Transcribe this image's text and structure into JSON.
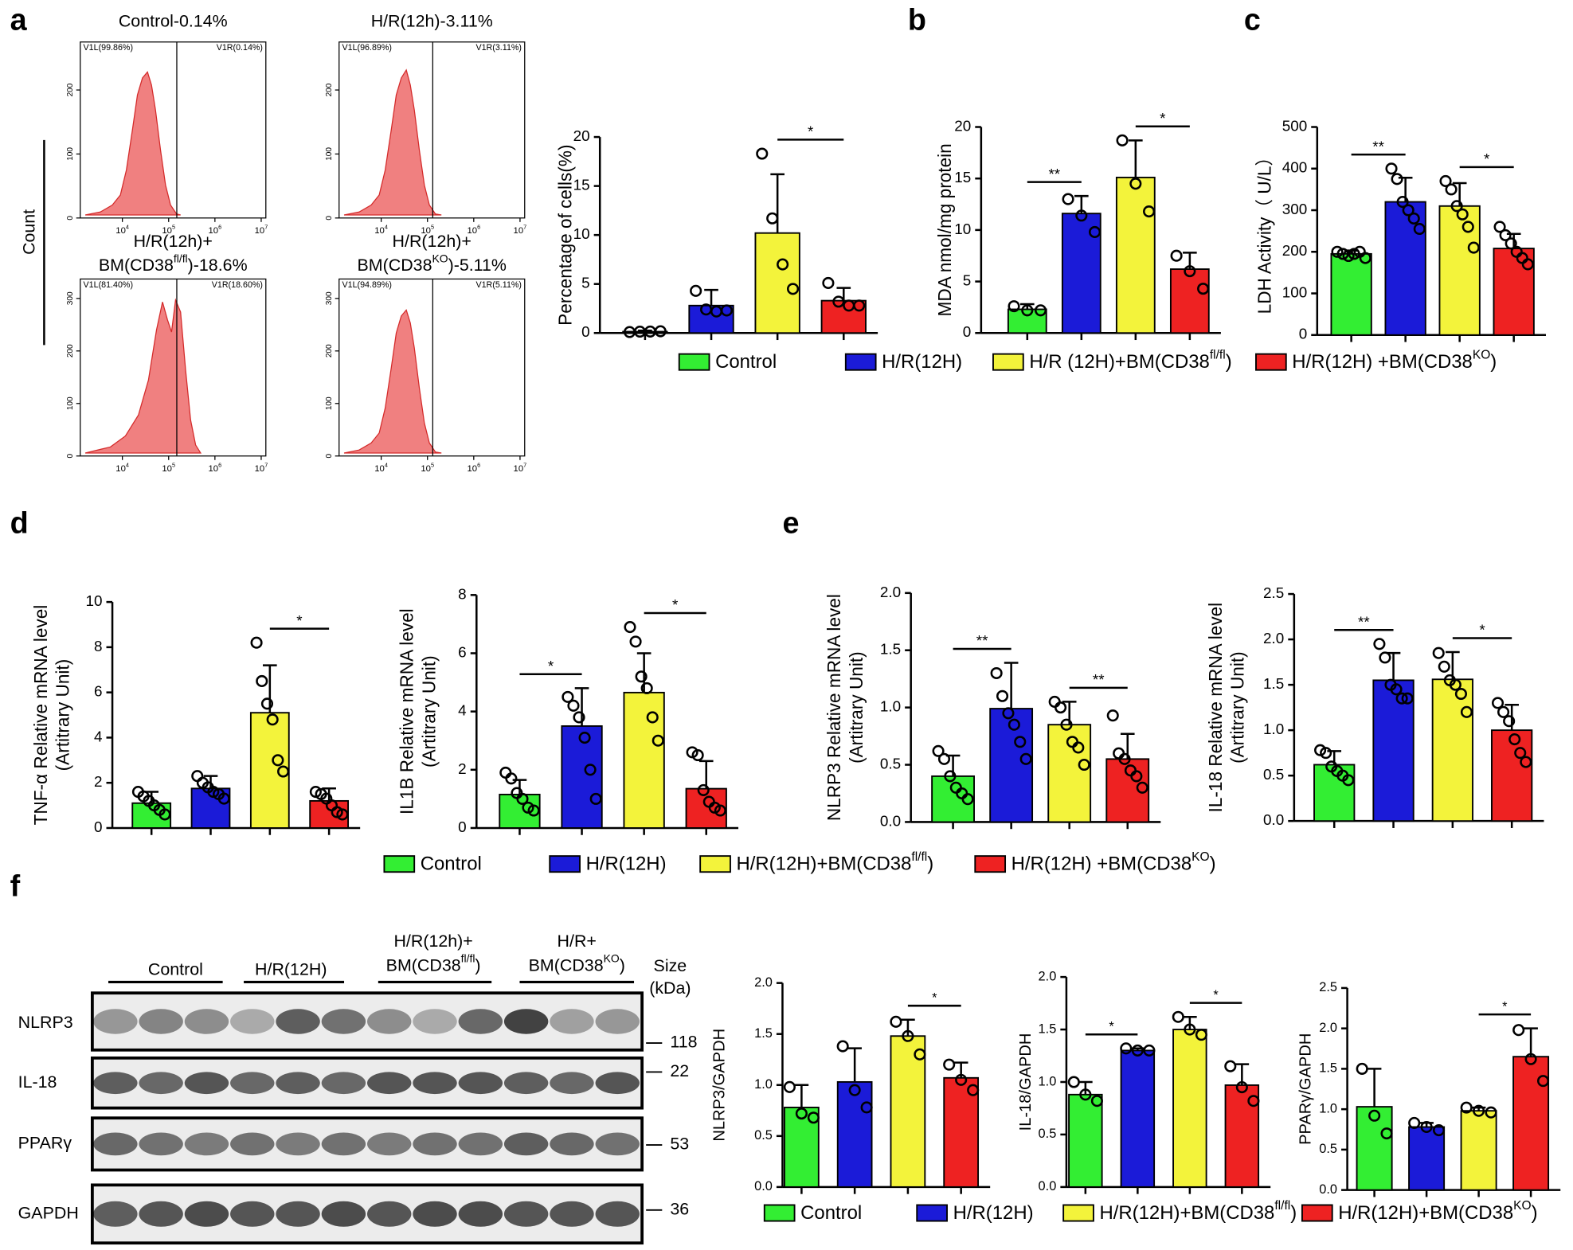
{
  "panel_labels": [
    "a",
    "b",
    "c",
    "d",
    "e",
    "f"
  ],
  "flow": {
    "ylabel": "Count",
    "xscale": "log",
    "xlim": [
      1230,
      12600000
    ],
    "xticks": [
      {
        "value": 10000,
        "label": [
          "10",
          {
            "sup": "4"
          }
        ]
      },
      {
        "value": 100000,
        "label": [
          "10",
          {
            "sup": "5"
          }
        ]
      },
      {
        "value": 1000000,
        "label": [
          "10",
          {
            "sup": "6"
          }
        ]
      },
      {
        "value": 10000000,
        "label": [
          "10",
          {
            "sup": "7"
          }
        ]
      }
    ],
    "panels": [
      {
        "title": [
          [
            "Control-0.14%"
          ]
        ],
        "gate_labels": [
          "V1L(99.86%)",
          "V1R(0.14%)"
        ],
        "gate": 150000,
        "ylim": [
          0,
          275
        ],
        "yticks": [
          0,
          100,
          200
        ]
      },
      {
        "title": [
          [
            "H/R(12h)-3.11%"
          ]
        ],
        "gate_labels": [
          "V1L(96.89%)",
          "V1R(3.11%)"
        ],
        "gate": 130000,
        "ylim": [
          0,
          275
        ],
        "yticks": [
          0,
          100,
          200
        ]
      },
      {
        "title": [
          [
            "H/R(12h)+"
          ],
          [
            "BM(CD38",
            {
              "sup": "fl/fl"
            },
            ")-18.6%"
          ]
        ],
        "gate_labels": [
          "V1L(81.40%)",
          "V1R(18.60%)"
        ],
        "gate": 150000,
        "ylim": [
          0,
          337
        ],
        "yticks": [
          0,
          100,
          200,
          300
        ]
      },
      {
        "title": [
          [
            "H/R(12h)+"
          ],
          [
            "BM(CD38",
            {
              "sup": "KO"
            },
            ")-5.11%"
          ]
        ],
        "gate_labels": [
          "V1L(94.89%)",
          "V1R(5.11%)"
        ],
        "gate": 130000,
        "ylim": [
          0,
          337
        ],
        "yticks": [
          0,
          100,
          200,
          300
        ]
      }
    ]
  },
  "chart_data": [
    {
      "type": "bar",
      "ylabel": [
        "Percentage of cells(%)"
      ],
      "ylim": [
        0,
        20
      ],
      "yticks": [
        0,
        5,
        10,
        15,
        20
      ],
      "values": [
        0.14,
        2.8,
        10.2,
        3.3
      ],
      "errors": [
        0.1,
        1.6,
        6.0,
        1.3
      ],
      "points": [
        [
          0.1,
          0.14,
          0.15,
          0.18
        ],
        [
          4.3,
          2.4,
          2.2,
          2.3
        ],
        [
          18.3,
          11.7,
          7.0,
          4.5
        ],
        [
          5.1,
          3.2,
          2.8,
          2.8
        ]
      ],
      "annotations": [
        {
          "label": "*",
          "groups": [
            2,
            3
          ]
        }
      ]
    },
    {
      "type": "bar",
      "ylabel": [
        "MDA nmol/mg protein"
      ],
      "ylim": [
        0,
        20
      ],
      "yticks": [
        0,
        5,
        10,
        15,
        20
      ],
      "values": [
        2.3,
        11.6,
        15.1,
        6.2
      ],
      "errors": [
        0.5,
        1.7,
        3.6,
        1.6
      ],
      "points": [
        [
          2.6,
          2.2,
          2.2
        ],
        [
          13.0,
          11.4,
          9.8
        ],
        [
          18.7,
          14.5,
          11.8
        ],
        [
          7.5,
          6.0,
          4.3
        ]
      ],
      "annotations": [
        {
          "label": "**",
          "groups": [
            0,
            1
          ]
        },
        {
          "label": "*",
          "groups": [
            2,
            3
          ]
        }
      ]
    },
    {
      "type": "bar",
      "ylabel": [
        "LDH Activity（ U/L）"
      ],
      "ylim": [
        0,
        500
      ],
      "yticks": [
        0,
        100,
        200,
        300,
        400,
        500
      ],
      "values": [
        195,
        320,
        310,
        208
      ],
      "errors": [
        8,
        58,
        55,
        35
      ],
      "points": [
        [
          200,
          195,
          190,
          195,
          200,
          185
        ],
        [
          400,
          375,
          320,
          300,
          280,
          255
        ],
        [
          370,
          350,
          310,
          290,
          260,
          210
        ],
        [
          260,
          240,
          220,
          200,
          185,
          170
        ]
      ],
      "annotations": [
        {
          "label": "**",
          "groups": [
            0,
            1
          ]
        },
        {
          "label": "*",
          "groups": [
            2,
            3
          ]
        }
      ]
    },
    {
      "type": "bar",
      "ylabel": [
        "TNF-α Relative mRNA level",
        "(Artitrary Unit)"
      ],
      "ylim": [
        0,
        10
      ],
      "yticks": [
        0,
        2,
        4,
        6,
        8,
        10
      ],
      "values": [
        1.1,
        1.75,
        5.1,
        1.2
      ],
      "errors": [
        0.5,
        0.55,
        2.1,
        0.55
      ],
      "points": [
        [
          1.6,
          1.4,
          1.2,
          1.0,
          0.8,
          0.6
        ],
        [
          2.3,
          2.0,
          1.8,
          1.6,
          1.5,
          1.3
        ],
        [
          8.2,
          6.5,
          5.5,
          4.8,
          3.0,
          2.5
        ],
        [
          1.6,
          1.5,
          1.3,
          1.0,
          0.7,
          0.6
        ]
      ],
      "annotations": [
        {
          "label": "*",
          "groups": [
            2,
            3
          ]
        }
      ]
    },
    {
      "type": "bar",
      "ylabel": [
        "IL1B Relative mRNA level",
        "(Artitrary Unit)"
      ],
      "ylim": [
        0,
        8
      ],
      "yticks": [
        0,
        2,
        4,
        6,
        8
      ],
      "values": [
        1.15,
        3.5,
        4.65,
        1.35
      ],
      "errors": [
        0.5,
        1.3,
        1.35,
        0.95
      ],
      "points": [
        [
          1.9,
          1.7,
          1.2,
          1.0,
          0.7,
          0.6
        ],
        [
          4.5,
          4.2,
          3.8,
          3.1,
          2.0,
          1.0
        ],
        [
          6.9,
          6.4,
          5.2,
          4.8,
          3.8,
          3.0
        ],
        [
          2.6,
          2.5,
          1.3,
          0.9,
          0.7,
          0.6
        ]
      ],
      "annotations": [
        {
          "label": "*",
          "groups": [
            0,
            1
          ]
        },
        {
          "label": "*",
          "groups": [
            2,
            3
          ]
        }
      ]
    },
    {
      "type": "bar",
      "ylabel": [
        "NLRP3 Relative mRNA level",
        "(Artitrary Unit)"
      ],
      "ylim": [
        0,
        2
      ],
      "yticks": [
        {
          "value": 0,
          "label": "0.0"
        },
        0.5,
        {
          "value": 1,
          "label": "1.0"
        },
        1.5,
        {
          "value": 2,
          "label": "2.0"
        }
      ],
      "values": [
        0.4,
        0.99,
        0.85,
        0.55
      ],
      "errors": [
        0.18,
        0.4,
        0.2,
        0.22
      ],
      "points": [
        [
          0.62,
          0.55,
          0.4,
          0.3,
          0.25,
          0.2
        ],
        [
          1.3,
          1.1,
          0.95,
          0.85,
          0.7,
          0.55
        ],
        [
          1.05,
          1.0,
          0.85,
          0.7,
          0.65,
          0.5
        ],
        [
          0.93,
          0.6,
          0.55,
          0.45,
          0.4,
          0.3
        ]
      ],
      "annotations": [
        {
          "label": "**",
          "groups": [
            0,
            1
          ]
        },
        {
          "label": "**",
          "groups": [
            2,
            3
          ]
        }
      ]
    },
    {
      "type": "bar",
      "ylabel": [
        "IL-18 Relative mRNA level",
        "(Artitrary Unit)"
      ],
      "ylim": [
        0,
        2.5
      ],
      "yticks": [
        {
          "value": 0,
          "label": "0.0"
        },
        0.5,
        {
          "value": 1,
          "label": "1.0"
        },
        1.5,
        {
          "value": 2,
          "label": "2.0"
        },
        2.5
      ],
      "values": [
        0.62,
        1.55,
        1.56,
        1.0
      ],
      "errors": [
        0.15,
        0.3,
        0.3,
        0.28
      ],
      "points": [
        [
          0.78,
          0.75,
          0.6,
          0.55,
          0.5,
          0.45
        ],
        [
          1.95,
          1.8,
          1.5,
          1.45,
          1.35,
          1.35
        ],
        [
          1.85,
          1.7,
          1.55,
          1.5,
          1.4,
          1.2
        ],
        [
          1.3,
          1.2,
          1.1,
          0.9,
          0.75,
          0.65
        ]
      ],
      "annotations": [
        {
          "label": "**",
          "groups": [
            0,
            1
          ]
        },
        {
          "label": "*",
          "groups": [
            2,
            3
          ]
        }
      ]
    },
    {
      "type": "bar",
      "ylabel": [
        "NLRP3/GAPDH"
      ],
      "ylim": [
        0,
        2
      ],
      "yticks": [
        {
          "value": 0,
          "label": "0.0"
        },
        0.5,
        {
          "value": 1,
          "label": "1.0"
        },
        1.5,
        {
          "value": 2,
          "label": "2.0"
        }
      ],
      "values": [
        0.78,
        1.03,
        1.48,
        1.07
      ],
      "errors": [
        0.22,
        0.33,
        0.16,
        0.15
      ],
      "points": [
        [
          0.98,
          0.72,
          0.68
        ],
        [
          1.38,
          0.95,
          0.78
        ],
        [
          1.62,
          1.48,
          1.3
        ],
        [
          1.2,
          1.05,
          0.95
        ]
      ],
      "annotations": [
        {
          "label": "*",
          "groups": [
            2,
            3
          ]
        }
      ]
    },
    {
      "type": "bar",
      "ylabel": [
        "IL-18/GAPDH"
      ],
      "ylim": [
        0,
        2
      ],
      "yticks": [
        {
          "value": 0,
          "label": "0.0"
        },
        0.5,
        {
          "value": 1,
          "label": "1.0"
        },
        1.5,
        {
          "value": 2,
          "label": "2.0"
        }
      ],
      "values": [
        0.88,
        1.3,
        1.5,
        0.97
      ],
      "errors": [
        0.12,
        0.02,
        0.12,
        0.2
      ],
      "points": [
        [
          1.0,
          0.88,
          0.82
        ],
        [
          1.32,
          1.3,
          1.3
        ],
        [
          1.62,
          1.5,
          1.45
        ],
        [
          1.15,
          0.95,
          0.82
        ]
      ],
      "annotations": [
        {
          "label": "*",
          "groups": [
            0,
            1
          ]
        },
        {
          "label": "*",
          "groups": [
            2,
            3
          ]
        }
      ]
    },
    {
      "type": "bar",
      "ylabel": [
        "PPARγ/GAPDH"
      ],
      "ylim": [
        0,
        2.5
      ],
      "yticks": [
        {
          "value": 0,
          "label": "0.0"
        },
        0.5,
        {
          "value": 1,
          "label": "1.0"
        },
        1.5,
        {
          "value": 2,
          "label": "2.0"
        },
        2.5
      ],
      "values": [
        1.03,
        0.78,
        0.98,
        1.65
      ],
      "errors": [
        0.47,
        0.05,
        0.04,
        0.35
      ],
      "points": [
        [
          1.5,
          0.92,
          0.7
        ],
        [
          0.83,
          0.78,
          0.74
        ],
        [
          1.02,
          0.98,
          0.96
        ],
        [
          1.98,
          1.62,
          1.35
        ]
      ],
      "annotations": [
        {
          "label": "*",
          "groups": [
            2,
            3
          ]
        }
      ]
    }
  ],
  "legends": [
    {
      "entries": [
        {
          "name": [
            "Control"
          ],
          "color": "#33ee33"
        },
        {
          "name": [
            "H/R(12H)"
          ],
          "color": "#1b1bd8"
        },
        {
          "name": [
            "H/R (12H)+BM(CD38",
            {
              "sup": "fl/fl"
            },
            ")"
          ],
          "color": "#f3f33b"
        },
        {
          "name": [
            "H/R(12H) +BM(CD38",
            {
              "sup": "KO"
            },
            ")"
          ],
          "color": "#ee2222"
        }
      ]
    },
    {
      "entries": [
        {
          "name": [
            "Control"
          ],
          "color": "#33ee33"
        },
        {
          "name": [
            "H/R(12H)"
          ],
          "color": "#1b1bd8"
        },
        {
          "name": [
            "H/R(12H)+BM(CD38",
            {
              "sup": "fl/fl"
            },
            ")"
          ],
          "color": "#f3f33b"
        },
        {
          "name": [
            "H/R(12H) +BM(CD38",
            {
              "sup": "KO"
            },
            ")"
          ],
          "color": "#ee2222"
        }
      ]
    },
    {
      "entries": [
        {
          "name": [
            "Control"
          ],
          "color": "#33ee33"
        },
        {
          "name": [
            "H/R(12H)"
          ],
          "color": "#1b1bd8"
        },
        {
          "name": [
            "H/R(12H)+BM(CD38",
            {
              "sup": "fl/fl"
            },
            ")"
          ],
          "color": "#f3f33b"
        },
        {
          "name": [
            "H/R(12H)+BM(CD38",
            {
              "sup": "KO"
            },
            ")"
          ],
          "color": "#ee2222"
        }
      ]
    }
  ],
  "blot": {
    "groups": [
      [
        [
          "Control"
        ]
      ],
      [
        [
          "H/R(12H)"
        ]
      ],
      [
        [
          "H/R(12h)+"
        ],
        [
          "BM(CD38",
          {
            "sup": "fl/fl"
          },
          ")"
        ]
      ],
      [
        [
          "H/R+"
        ],
        [
          "BM(CD38",
          {
            "sup": "KO"
          },
          ")"
        ]
      ]
    ],
    "size_label": [
      "Size",
      "(kDa)"
    ],
    "rows": [
      {
        "name": "NLRP3",
        "size": 118
      },
      {
        "name": "IL-18",
        "size": 22
      },
      {
        "name": "PPARγ",
        "size": 53
      },
      {
        "name": "GAPDH",
        "size": 36
      }
    ]
  }
}
